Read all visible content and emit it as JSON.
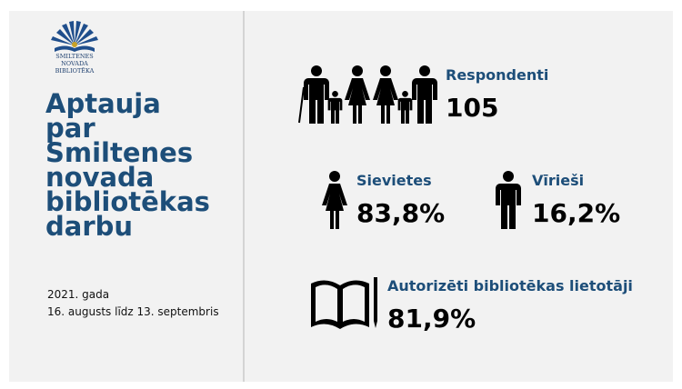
{
  "logo": {
    "lines": [
      "SMILTENES",
      "NOVADA",
      "BIBLIOTĒKA"
    ]
  },
  "title": [
    "Aptauja",
    "par",
    "Smiltenes",
    "novada",
    "bibliotēkas",
    "darbu"
  ],
  "dates": [
    "2021. gada",
    "16. augusts līdz 13. septembris"
  ],
  "stats": [
    {
      "label": "Respondenti",
      "value": "105"
    },
    {
      "label": "Sievietes",
      "value": "83,8%"
    },
    {
      "label": "Vīrieši",
      "value": "16,2%"
    },
    {
      "label": "Autorizēti bibliotēkas lietotāji",
      "value": "81,9%"
    }
  ]
}
